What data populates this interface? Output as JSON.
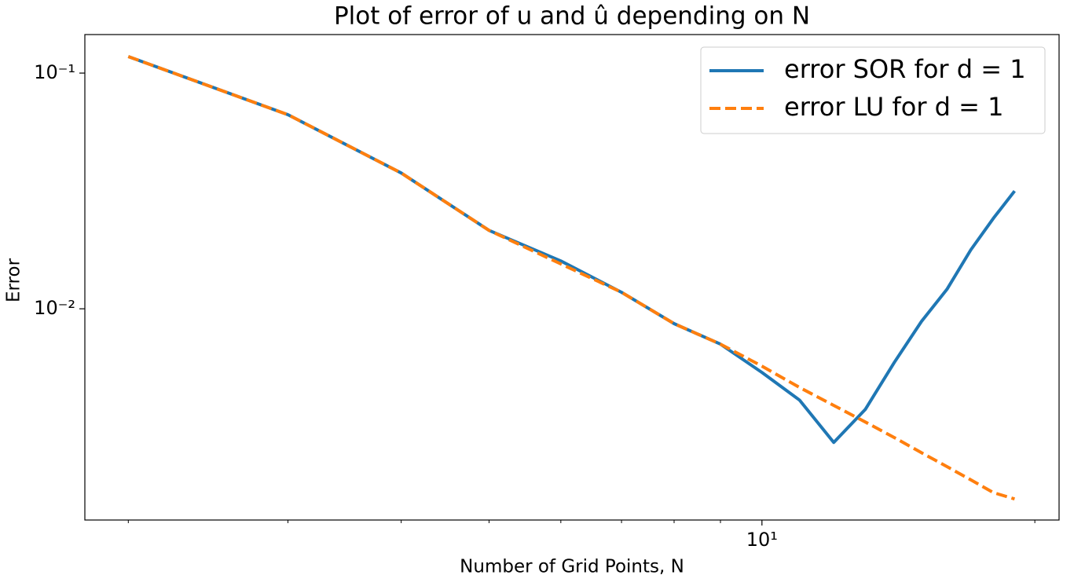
{
  "chart_data": {
    "type": "line",
    "title": "Plot of error of u and û depending on N",
    "x_label": "Number of Grid Points, N",
    "y_label": "Error",
    "x": [
      2,
      3,
      4,
      5,
      6,
      7,
      8,
      9,
      10,
      11,
      12,
      13,
      14,
      15,
      16,
      17,
      18,
      19
    ],
    "series": [
      {
        "name": "error SOR for d = 1",
        "color": "#1f77b4",
        "linestyle": "solid",
        "values": [
          0.1175,
          0.0666,
          0.0377,
          0.0215,
          0.01596,
          0.01175,
          0.00865,
          0.00708,
          0.00537,
          0.0041,
          0.00271,
          0.00374,
          0.00593,
          0.00885,
          0.0121,
          0.0178,
          0.0242,
          0.0316
        ]
      },
      {
        "name": "error LU for d = 1",
        "color": "#ff7f0e",
        "linestyle": "dashed",
        "values": [
          0.1175,
          0.0666,
          0.0377,
          0.0215,
          0.0155,
          0.01175,
          0.00865,
          0.00708,
          0.00571,
          0.00464,
          0.00389,
          0.00331,
          0.00284,
          0.00245,
          0.00214,
          0.00188,
          0.00166,
          0.00156
        ]
      }
    ],
    "xscale": "log",
    "yscale": "log",
    "xlim": [
      1.791,
      21.27
    ],
    "ylim": [
      0.00127,
      0.1457
    ],
    "xticks": [
      {
        "value": 10,
        "label": "10¹"
      }
    ],
    "xminorticks": [
      2,
      3,
      4,
      5,
      6,
      7,
      8,
      9,
      20
    ],
    "yticks": [
      {
        "value": 0.1,
        "label": "10⁻¹"
      },
      {
        "value": 0.01,
        "label": "10⁻²"
      }
    ],
    "grid": false,
    "legend": "upper right"
  }
}
